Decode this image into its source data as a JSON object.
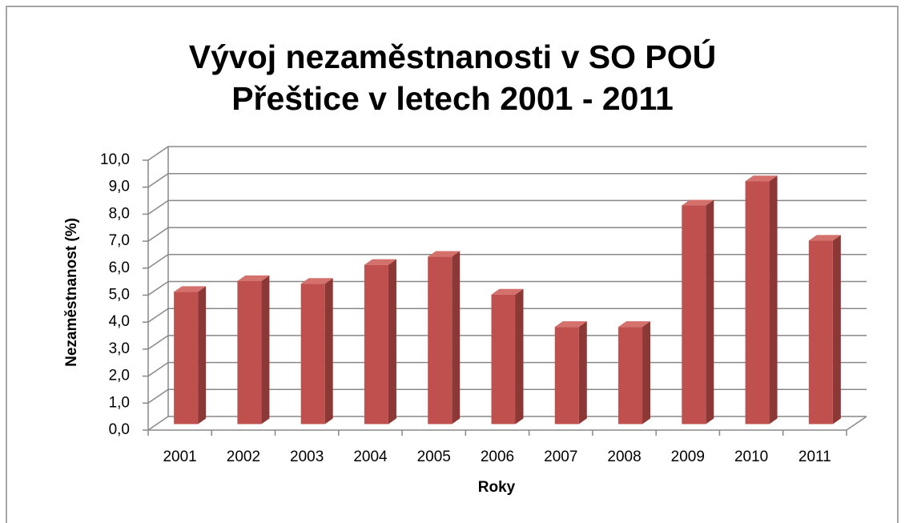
{
  "chart_data": {
    "type": "bar3d",
    "title": [
      "Vývoj nezaměstnanosti v SO POÚ",
      "Přeštice v letech 2001 - 2011"
    ],
    "y_label": "Nezaměstnanost (%)",
    "x_label": "Roky",
    "categories": [
      "2001",
      "2002",
      "2003",
      "2004",
      "2005",
      "2006",
      "2007",
      "2008",
      "2009",
      "2010",
      "2011"
    ],
    "values": [
      4.9,
      5.3,
      5.2,
      5.9,
      6.2,
      4.8,
      3.6,
      3.6,
      8.1,
      9.0,
      6.8
    ],
    "color": "#c0504d",
    "side_color": "#8c3836",
    "top_color": "#d4716d",
    "ylim": [
      0,
      10
    ],
    "yticks": [
      {
        "value": 0,
        "label": "0,0"
      },
      {
        "value": 1,
        "label": "1,0"
      },
      {
        "value": 2,
        "label": "2,0"
      },
      {
        "value": 3,
        "label": "3,0"
      },
      {
        "value": 4,
        "label": "4,0"
      },
      {
        "value": 5,
        "label": "5,0"
      },
      {
        "value": 6,
        "label": "6,0"
      },
      {
        "value": 7,
        "label": "7,0"
      },
      {
        "value": 8,
        "label": "8,0"
      },
      {
        "value": 9,
        "label": "9,0"
      },
      {
        "value": 10,
        "label": "10,0"
      }
    ],
    "grid": true
  }
}
